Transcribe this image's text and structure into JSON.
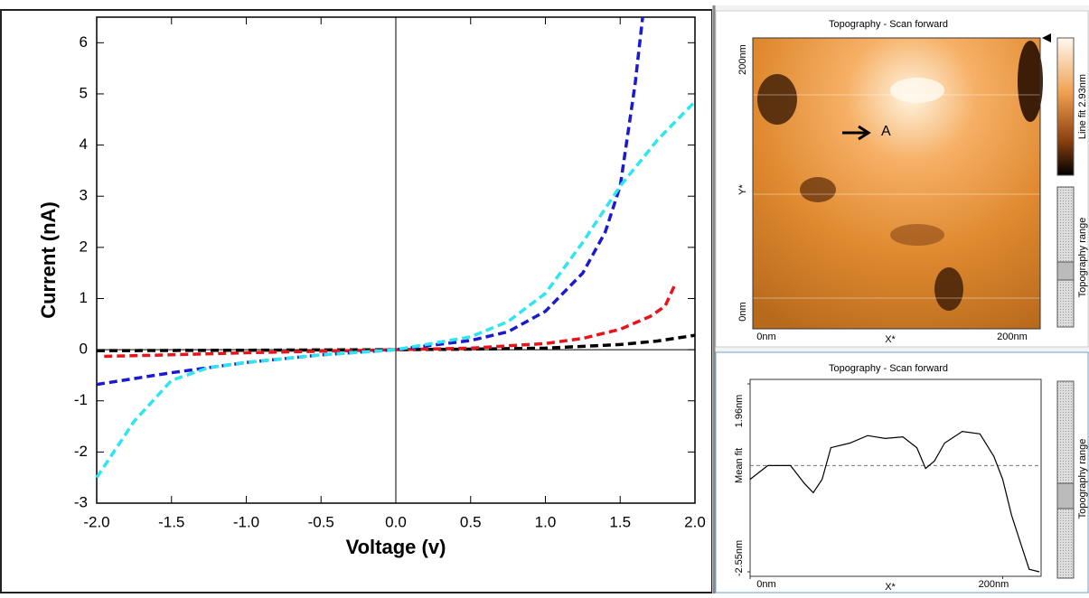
{
  "chart_data": [
    {
      "type": "line",
      "xlabel": "Voltage (v)",
      "ylabel": "Current (nA)",
      "xlim": [
        -2,
        2
      ],
      "ylim": [
        -3,
        6.5
      ],
      "xticks": [
        {
          "value": -2,
          "label": "-2.0"
        },
        {
          "value": -1.5,
          "label": "-1.5"
        },
        {
          "value": -1,
          "label": "-1.0"
        },
        {
          "value": -0.5,
          "label": "-0.5"
        },
        {
          "value": 0,
          "label": "0.0"
        },
        0.5,
        {
          "value": 1,
          "label": "1.0"
        },
        1.5,
        {
          "value": 2,
          "label": "2.0"
        }
      ],
      "yticks": [
        -3,
        -2,
        -1,
        0,
        1,
        2,
        3,
        4,
        5,
        6
      ],
      "series": [
        {
          "color": "#000000",
          "x": [
            -2,
            -1,
            0,
            0.5,
            1,
            1.5,
            1.75,
            2
          ],
          "values": [
            -0.02,
            -0.01,
            0,
            0.01,
            0.03,
            0.1,
            0.17,
            0.28
          ]
        },
        {
          "color": "#e8141c",
          "x": [
            -1.95,
            -1.5,
            -1,
            -0.5,
            0,
            0.5,
            1,
            1.25,
            1.5,
            1.7,
            1.8,
            1.87
          ],
          "values": [
            -0.13,
            -0.1,
            -0.06,
            -0.03,
            0,
            0.03,
            0.12,
            0.22,
            0.4,
            0.65,
            0.85,
            1.3
          ]
        },
        {
          "color": "#1a1acf",
          "x": [
            -2,
            -1.5,
            -1,
            -0.5,
            0,
            0.5,
            0.75,
            1,
            1.25,
            1.4,
            1.5,
            1.6,
            1.65
          ],
          "values": [
            -0.68,
            -0.45,
            -0.25,
            -0.1,
            0,
            0.18,
            0.35,
            0.75,
            1.5,
            2.3,
            3.2,
            5.2,
            6.5
          ]
        },
        {
          "color": "#2ee6f0",
          "x": [
            -2,
            -1.75,
            -1.5,
            -1.25,
            -1,
            -0.5,
            0,
            0.5,
            0.75,
            1,
            1.25,
            1.5,
            1.75,
            2
          ],
          "values": [
            -2.5,
            -1.4,
            -0.6,
            -0.35,
            -0.25,
            -0.1,
            0,
            0.25,
            0.55,
            1.1,
            2.1,
            3.2,
            4.1,
            4.85
          ]
        }
      ]
    },
    {
      "type": "line",
      "title": "Topography - Scan forward",
      "xlabel": "X*",
      "side_label": "Topography range",
      "xlim": [
        0,
        229
      ],
      "ylim": [
        -2.55,
        1.96
      ],
      "xticks": [
        {
          "value": 0,
          "label": "0nm"
        },
        {
          "value": 200,
          "label": "200nm"
        }
      ],
      "yticks": [
        {
          "value": 1.96,
          "label": "1.96nm"
        },
        {
          "value": 0,
          "label": "Mean fit"
        },
        {
          "value": -2.55,
          "label": "-2.55nm"
        }
      ],
      "series": [
        {
          "color": "#000000",
          "x": [
            0,
            14,
            32,
            43,
            50,
            57,
            64,
            79,
            93,
            107,
            121,
            132,
            139,
            146,
            154,
            168,
            182,
            193,
            200,
            207,
            214,
            221,
            229
          ],
          "values": [
            -0.33,
            0,
            0,
            -0.43,
            -0.65,
            -0.33,
            0.43,
            0.54,
            0.72,
            0.65,
            0.69,
            0.43,
            -0.07,
            0.11,
            0.54,
            0.82,
            0.76,
            0.22,
            -0.33,
            -1.19,
            -1.84,
            -2.49,
            -2.55
          ]
        }
      ]
    }
  ],
  "topography_image": {
    "title": "Topography - Scan forward",
    "y_labels": [
      "200nm",
      "Y*",
      "0nm"
    ],
    "x_labels": [
      "0nm",
      "X*",
      "200nm"
    ],
    "marker": "A",
    "colorbar_label": "Line fit 2.93nm",
    "range_label": "Topography range"
  }
}
